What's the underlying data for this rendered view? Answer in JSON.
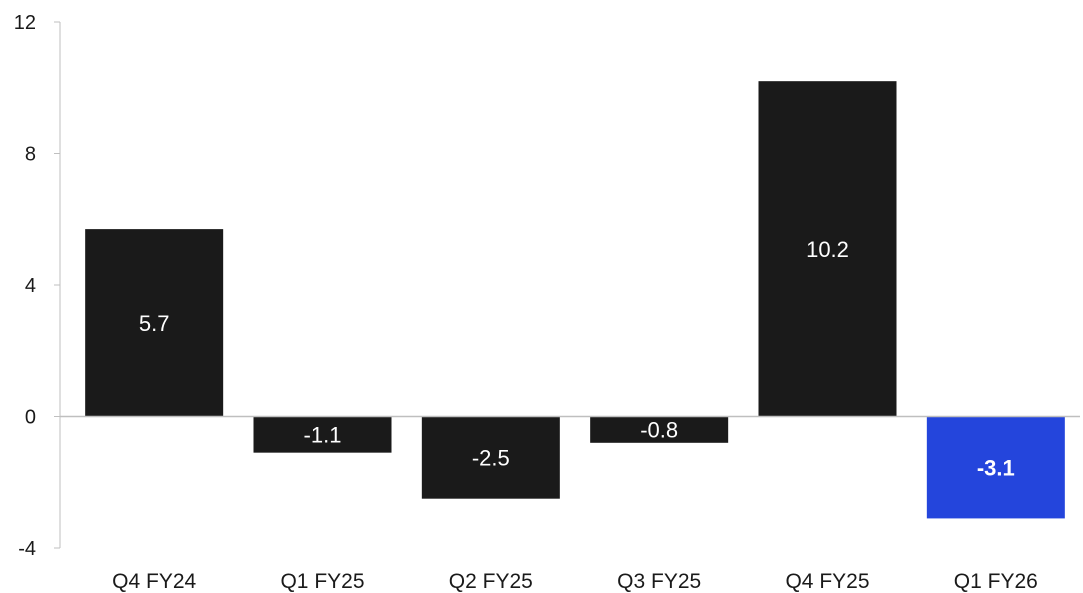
{
  "chart_data": {
    "type": "bar",
    "title": "",
    "xlabel": "",
    "ylabel": "",
    "categories": [
      "Q4 FY24",
      "Q1 FY25",
      "Q2 FY25",
      "Q3 FY25",
      "Q4 FY25",
      "Q1 FY26"
    ],
    "values": [
      5.7,
      -1.1,
      -2.5,
      -0.8,
      10.2,
      -3.1
    ],
    "data_labels": [
      "5.7",
      "-1.1",
      "-2.5",
      "-0.8",
      "10.2",
      "-3.1"
    ],
    "highlight_index": 5,
    "ylim": [
      -4,
      12
    ],
    "yticks": [
      -4,
      0,
      4,
      8,
      12
    ],
    "ytick_labels": [
      "-4",
      "0",
      "4",
      "8",
      "12"
    ],
    "grid": false,
    "legend": "none",
    "colors": {
      "bar": "#1a1a1a",
      "highlight_bar": "#2445dc",
      "label_on_bar": "#ffffff",
      "axis": "#bfbfbf",
      "text": "#1a1a1a"
    }
  }
}
